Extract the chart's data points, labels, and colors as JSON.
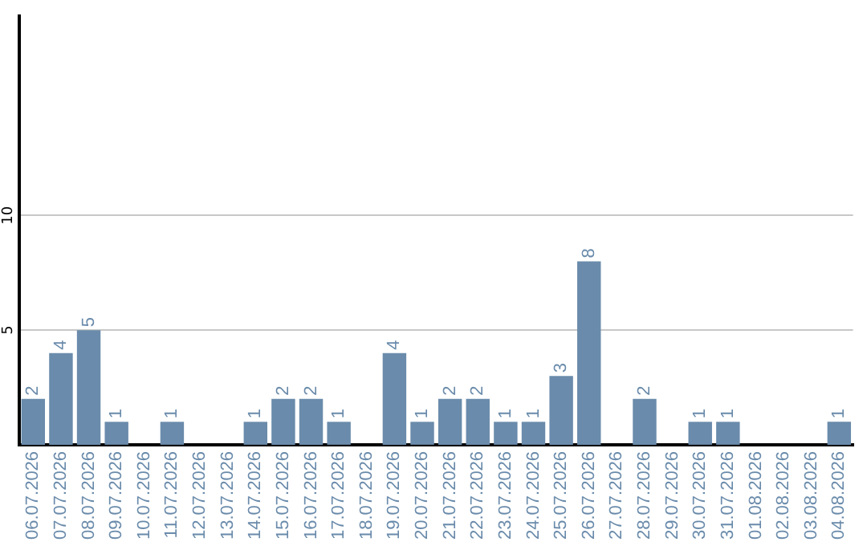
{
  "chart_data": {
    "type": "bar",
    "categories": [
      "06.07.2026",
      "07.07.2026",
      "08.07.2026",
      "09.07.2026",
      "10.07.2026",
      "11.07.2026",
      "12.07.2026",
      "13.07.2026",
      "14.07.2026",
      "15.07.2026",
      "16.07.2026",
      "17.07.2026",
      "18.07.2026",
      "19.07.2026",
      "20.07.2026",
      "21.07.2026",
      "22.07.2026",
      "23.07.2026",
      "24.07.2026",
      "25.07.2026",
      "26.07.2026",
      "27.07.2026",
      "28.07.2026",
      "29.07.2026",
      "30.07.2026",
      "31.07.2026",
      "01.08.2026",
      "02.08.2026",
      "03.08.2026",
      "04.08.2026"
    ],
    "values": [
      2,
      4,
      5,
      1,
      0,
      1,
      0,
      0,
      1,
      2,
      2,
      1,
      0,
      4,
      1,
      2,
      2,
      1,
      1,
      3,
      8,
      0,
      2,
      0,
      1,
      1,
      0,
      0,
      0,
      1
    ],
    "value_labels": [
      "2",
      "4",
      "5",
      "1",
      null,
      "1",
      null,
      null,
      "1",
      "2",
      "2",
      "1",
      null,
      "4",
      "1",
      "2",
      "2",
      "1",
      "1",
      "3",
      "8",
      null,
      "2",
      null,
      "1",
      "1",
      null,
      null,
      null,
      "1"
    ],
    "color": "#6a8bab",
    "ylim": [
      0,
      18.7
    ],
    "yticks": [
      5,
      10
    ],
    "grid": "y",
    "legend": false
  }
}
